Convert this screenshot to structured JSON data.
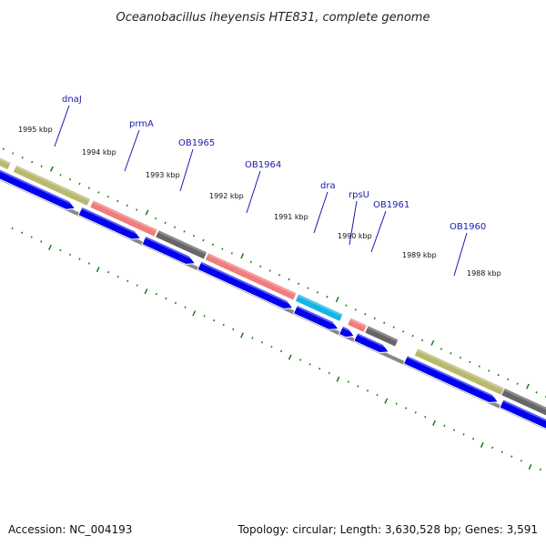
{
  "title": "Oceanobacillus iheyensis HTE831, complete genome",
  "footer": {
    "accession": "Accession: NC_004193",
    "summary": "Topology: circular; Length: 3,630,528 bp; Genes: 3,591"
  },
  "colors": {
    "cds_forward": "#0000ee",
    "olive": "#b8b86e",
    "salmon": "#f07c7c",
    "gray": "#666666",
    "cyan": "#16b4e6",
    "tick": "#1a7a1a",
    "label": "#1a1aaa",
    "backbone": "#888888"
  },
  "chart_data": {
    "type": "genome-map",
    "kbp_ticks": [
      "1995 kbp",
      "1994 kbp",
      "1993 kbp",
      "1992 kbp",
      "1991 kbp",
      "1990 kbp",
      "1989 kbp",
      "1988 kbp"
    ],
    "genes": [
      {
        "label": "dnaJ",
        "color": "olive"
      },
      {
        "label": "prmA",
        "color": "salmon"
      },
      {
        "label": "OB1965",
        "color": "gray"
      },
      {
        "label": "OB1964",
        "color": "salmon"
      },
      {
        "label": "dra",
        "color": "cyan"
      },
      {
        "label": "rpsU",
        "color": "salmon"
      },
      {
        "label": "OB1961",
        "color": "gray"
      },
      {
        "label": "OB1960",
        "color": "olive"
      }
    ]
  }
}
